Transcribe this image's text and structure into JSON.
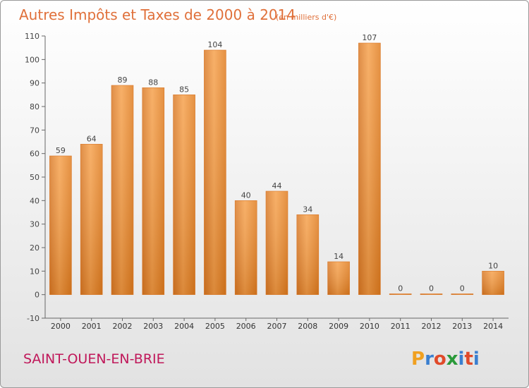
{
  "chart_data": {
    "type": "bar",
    "title": "Autres Impôts et Taxes de 2000 à 2014",
    "unit": "(en milliers d'€)",
    "categories": [
      "2000",
      "2001",
      "2002",
      "2003",
      "2004",
      "2005",
      "2006",
      "2007",
      "2008",
      "2009",
      "2010",
      "2011",
      "2012",
      "2013",
      "2014"
    ],
    "values": [
      59,
      64,
      89,
      88,
      85,
      104,
      40,
      44,
      34,
      14,
      107,
      0,
      0,
      0,
      10
    ],
    "ylim": [
      -10,
      110
    ],
    "yticks": [
      -10,
      0,
      10,
      20,
      30,
      40,
      50,
      60,
      70,
      80,
      90,
      100,
      110
    ],
    "grid": false,
    "bar_color": "#f08a2e"
  },
  "footer": {
    "town": "SAINT-OUEN-EN-BRIE",
    "logo_letters": [
      "P",
      "r",
      "o",
      "x",
      "i",
      "t",
      "i"
    ],
    "logo_colors": [
      "#f0a020",
      "#3a7fd0",
      "#e04a2a",
      "#2a9a3a",
      "#3a7fd0",
      "#e04a2a",
      "#3a7fd0"
    ]
  }
}
